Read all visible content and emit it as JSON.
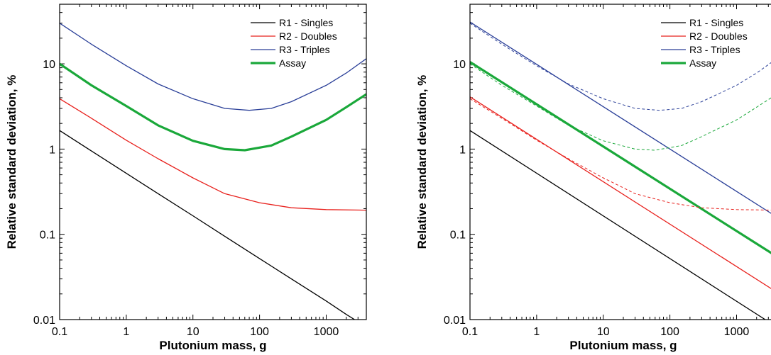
{
  "chart_data": [
    {
      "type": "line",
      "xlabel": "Plutonium mass, g",
      "ylabel": "Relative standard deviation, %",
      "xscale": "log",
      "yscale": "log",
      "xlim": [
        0.1,
        4000
      ],
      "ylim": [
        0.01,
        50
      ],
      "xticks": [
        0.1,
        1,
        10,
        100,
        1000
      ],
      "xtick_labels": [
        "0.1",
        "1",
        "10",
        "100",
        "1000"
      ],
      "yticks": [
        0.01,
        0.1,
        1,
        10
      ],
      "ytick_labels": [
        "0.01",
        "0.1",
        "1",
        "10"
      ],
      "legend_position": "top-right",
      "grid": false,
      "series": [
        {
          "name": "R1 - Singles",
          "color": "#000000",
          "style": "solid",
          "width": 1.3,
          "x": [
            0.1,
            0.3,
            1,
            3,
            10,
            30,
            100,
            300,
            1000,
            2000,
            4000
          ],
          "y": [
            1.65,
            0.95,
            0.52,
            0.3,
            0.165,
            0.095,
            0.052,
            0.03,
            0.0165,
            0.0115,
            0.0082
          ]
        },
        {
          "name": "R2 - Doubles",
          "color": "#e8201c",
          "style": "solid",
          "width": 1.3,
          "x": [
            0.1,
            0.3,
            1,
            3,
            10,
            30,
            100,
            300,
            1000,
            4000
          ],
          "y": [
            3.9,
            2.3,
            1.27,
            0.77,
            0.46,
            0.3,
            0.235,
            0.205,
            0.195,
            0.192
          ]
        },
        {
          "name": "R3 - Triples",
          "color": "#2a3f98",
          "style": "solid",
          "width": 1.3,
          "x": [
            0.1,
            0.3,
            1,
            3,
            10,
            30,
            70,
            150,
            300,
            1000,
            2000,
            4000
          ],
          "y": [
            30,
            17,
            9.5,
            5.8,
            3.9,
            3.0,
            2.85,
            3.0,
            3.6,
            5.6,
            7.8,
            11.5
          ]
        },
        {
          "name": "Assay",
          "color": "#1aa83a",
          "style": "solid",
          "width": 3.2,
          "x": [
            0.1,
            0.3,
            1,
            3,
            10,
            30,
            60,
            150,
            300,
            1000,
            2000,
            4000
          ],
          "y": [
            10,
            5.6,
            3.2,
            1.9,
            1.25,
            1.0,
            0.97,
            1.1,
            1.4,
            2.2,
            3.1,
            4.4
          ]
        }
      ]
    },
    {
      "type": "line",
      "xlabel": "Plutonium mass, g",
      "ylabel": "Relative standard deviation, %",
      "xscale": "log",
      "yscale": "log",
      "xlim": [
        0.1,
        4000
      ],
      "ylim": [
        0.01,
        50
      ],
      "xticks": [
        0.1,
        1,
        10,
        100,
        1000
      ],
      "xtick_labels": [
        "0.1",
        "1",
        "10",
        "100",
        "1000"
      ],
      "yticks": [
        0.01,
        0.1,
        1,
        10
      ],
      "ytick_labels": [
        "0.01",
        "0.1",
        "1",
        "10"
      ],
      "legend_position": "top-right",
      "grid": false,
      "series": [
        {
          "name": "R1 - Singles",
          "color": "#000000",
          "style": "solid",
          "width": 1.3,
          "x": [
            0.1,
            4000
          ],
          "y": [
            1.65,
            0.0082
          ]
        },
        {
          "name": "R2 - Doubles",
          "color": "#e8201c",
          "style": "solid",
          "width": 1.3,
          "x": [
            0.1,
            4000
          ],
          "y": [
            4.1,
            0.021
          ]
        },
        {
          "name": "R3 - Triples",
          "color": "#2a3f98",
          "style": "solid",
          "width": 1.3,
          "x": [
            0.1,
            4000
          ],
          "y": [
            31,
            0.16
          ]
        },
        {
          "name": "Assay",
          "color": "#1aa83a",
          "style": "solid",
          "width": 3.2,
          "x": [
            0.1,
            4000
          ],
          "y": [
            10.5,
            0.055
          ]
        },
        {
          "color": "#2a3f98",
          "style": "dashed",
          "width": 1,
          "x": [
            0.1,
            0.3,
            1,
            3,
            10,
            30,
            70,
            150,
            300,
            1000,
            2000,
            4000
          ],
          "y": [
            30,
            17,
            9.5,
            5.8,
            3.9,
            3.0,
            2.85,
            3.0,
            3.6,
            5.6,
            7.8,
            11.5
          ]
        },
        {
          "color": "#1aa83a",
          "style": "dashed",
          "width": 1,
          "x": [
            0.1,
            0.3,
            1,
            3,
            10,
            30,
            60,
            150,
            300,
            1000,
            2000,
            4000
          ],
          "y": [
            10,
            5.6,
            3.2,
            1.9,
            1.25,
            1.0,
            0.97,
            1.1,
            1.4,
            2.2,
            3.1,
            4.4
          ]
        },
        {
          "color": "#e8201c",
          "style": "dashed",
          "width": 1,
          "x": [
            0.1,
            0.3,
            1,
            3,
            10,
            30,
            100,
            300,
            1000,
            4000
          ],
          "y": [
            3.9,
            2.3,
            1.27,
            0.77,
            0.46,
            0.3,
            0.235,
            0.205,
            0.195,
            0.192
          ]
        }
      ]
    }
  ]
}
